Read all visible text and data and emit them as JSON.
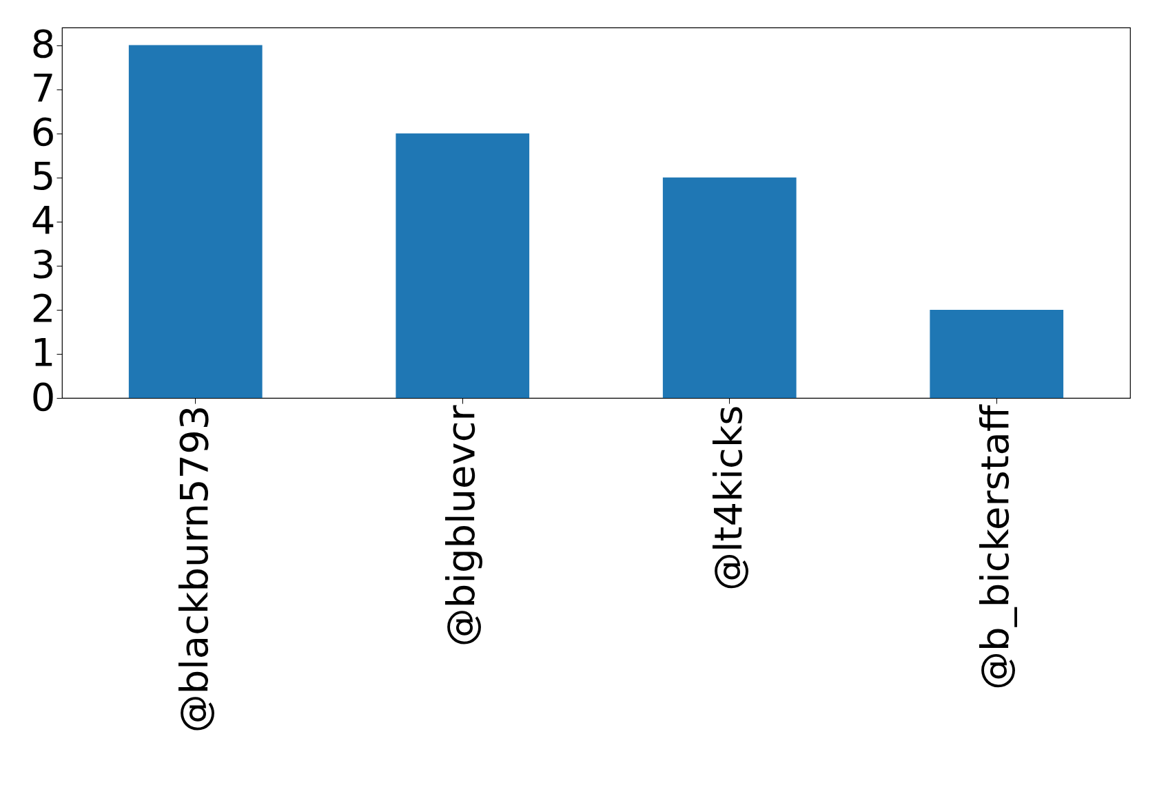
{
  "chart_data": {
    "type": "bar",
    "categories": [
      "@blackburn5793",
      "@bigbluevcr",
      "@lt4kicks",
      "@b_bickerstaff"
    ],
    "values": [
      8,
      6,
      5,
      2
    ],
    "color": "#1f77b4",
    "ylim": [
      0,
      8.4
    ],
    "yticks": [
      0,
      1,
      2,
      3,
      4,
      5,
      6,
      7,
      8
    ],
    "grid": false
  }
}
